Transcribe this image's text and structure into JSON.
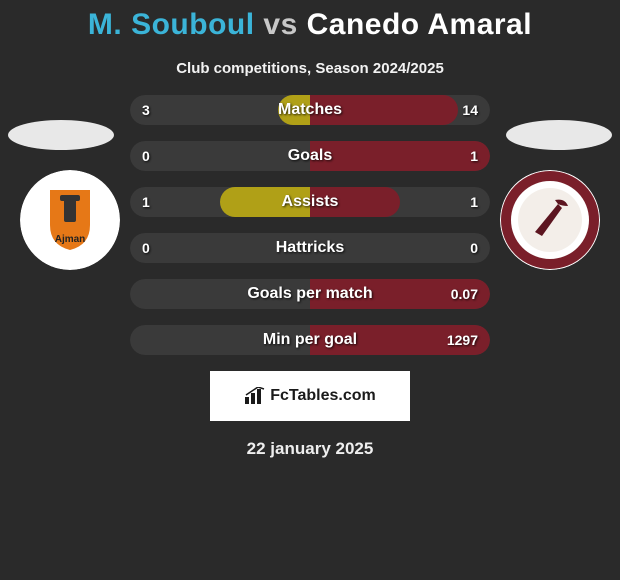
{
  "title_player1": "M. Souboul",
  "title_vs": "vs",
  "title_player2": "Canedo Amaral",
  "title_color_p1": "#3bb4d8",
  "title_color_vs": "#c8c8c8",
  "title_color_p2": "#ffffff",
  "subtitle": "Club competitions, Season 2024/2025",
  "flag_left_bg": "#e8e8e8",
  "flag_right_bg": "#e8e8e8",
  "crest_left": {
    "bg": "#ffffff",
    "accent": "#e67817",
    "text": "Ajman",
    "text_color": "#222222"
  },
  "crest_right": {
    "bg": "#ffffff",
    "ring": "#7a1f2a",
    "accent": "#5c1520"
  },
  "bars": {
    "track_left_color": "#3a3a3a",
    "track_right_color": "#3a3a3a",
    "fill_left_color": "#b0a017",
    "fill_right_color": "#7a1f2a",
    "rows": [
      {
        "label": "Matches",
        "left_val": "3",
        "right_val": "14",
        "left_pct": 17.6,
        "right_pct": 82.4
      },
      {
        "label": "Goals",
        "left_val": "0",
        "right_val": "1",
        "left_pct": 0.0,
        "right_pct": 100.0
      },
      {
        "label": "Assists",
        "left_val": "1",
        "right_val": "1",
        "left_pct": 50.0,
        "right_pct": 50.0
      },
      {
        "label": "Hattricks",
        "left_val": "0",
        "right_val": "0",
        "left_pct": 0.0,
        "right_pct": 0.0
      },
      {
        "label": "Goals per match",
        "left_val": "",
        "right_val": "0.07",
        "left_pct": 0.0,
        "right_pct": 100.0
      },
      {
        "label": "Min per goal",
        "left_val": "",
        "right_val": "1297",
        "left_pct": 0.0,
        "right_pct": 100.0
      }
    ]
  },
  "fctables_text": "FcTables.com",
  "date": "22 january 2025",
  "background_color": "#2a2a2a"
}
